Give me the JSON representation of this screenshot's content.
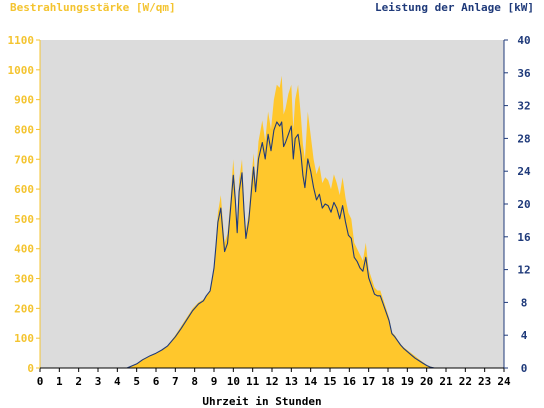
{
  "chart_data": {
    "type": "area",
    "left_axis_title": "Bestrahlungsstärke [W/qm]",
    "right_axis_title": "Leistung der Anlage [kW]",
    "xlabel": "Uhrzeit in Stunden",
    "x_ticks": [
      "0",
      "1",
      "2",
      "3",
      "4",
      "5",
      "6",
      "7",
      "8",
      "9",
      "10",
      "11",
      "12",
      "13",
      "14",
      "15",
      "16",
      "17",
      "18",
      "19",
      "20",
      "21",
      "22",
      "23",
      "24"
    ],
    "y_left_ticks": [
      "0",
      "100",
      "200",
      "300",
      "400",
      "500",
      "600",
      "700",
      "800",
      "900",
      "1000",
      "1100"
    ],
    "y_right_ticks": [
      "0",
      "4",
      "8",
      "12",
      "16",
      "20",
      "24",
      "28",
      "32",
      "36",
      "40"
    ],
    "xlim": [
      0,
      24
    ],
    "ylim_left": [
      0,
      1100
    ],
    "ylim_right": [
      0,
      40
    ],
    "grid": false,
    "colors": {
      "irradiance": "#ffc72c",
      "power": "#1f3a7a",
      "left_axis_text": "#f4c430",
      "right_axis_text": "#1f3a7a",
      "plot_background": "#dcdcdc"
    },
    "series": [
      {
        "name": "Bestrahlungsstärke [W/qm]",
        "axis": "left",
        "style": "filled-area",
        "x": [
          0,
          4.5,
          5,
          5.3,
          5.7,
          6,
          6.3,
          6.6,
          7,
          7.3,
          7.6,
          7.9,
          8.2,
          8.45,
          8.6,
          8.8,
          8.9,
          9.0,
          9.1,
          9.2,
          9.35,
          9.45,
          9.55,
          9.7,
          9.85,
          10.0,
          10.1,
          10.2,
          10.3,
          10.45,
          10.55,
          10.65,
          10.8,
          10.95,
          11.05,
          11.15,
          11.3,
          11.5,
          11.65,
          11.8,
          11.95,
          12.1,
          12.25,
          12.4,
          12.5,
          12.6,
          12.7,
          12.85,
          13.0,
          13.1,
          13.2,
          13.35,
          13.5,
          13.6,
          13.7,
          13.85,
          14.0,
          14.15,
          14.3,
          14.45,
          14.6,
          14.75,
          14.9,
          15.05,
          15.2,
          15.35,
          15.5,
          15.65,
          15.8,
          15.95,
          16.1,
          16.25,
          16.4,
          16.55,
          16.7,
          16.85,
          17.0,
          17.15,
          17.3,
          17.45,
          17.6,
          17.75,
          17.9,
          18.05,
          18.2,
          18.35,
          18.5,
          18.65,
          18.8,
          19.0,
          19.2,
          19.4,
          19.6,
          19.8,
          20.0,
          20.2,
          20.4,
          20.6,
          24
        ],
        "values": [
          0,
          0,
          15,
          30,
          40,
          50,
          60,
          75,
          110,
          140,
          170,
          200,
          220,
          230,
          240,
          260,
          300,
          340,
          420,
          520,
          580,
          500,
          420,
          450,
          560,
          700,
          600,
          480,
          630,
          700,
          560,
          460,
          520,
          650,
          720,
          620,
          760,
          830,
          760,
          860,
          800,
          900,
          950,
          940,
          980,
          850,
          870,
          920,
          950,
          800,
          900,
          950,
          840,
          750,
          700,
          860,
          780,
          700,
          650,
          680,
          620,
          640,
          630,
          600,
          650,
          620,
          580,
          640,
          570,
          520,
          500,
          420,
          400,
          380,
          360,
          420,
          330,
          300,
          270,
          260,
          260,
          230,
          200,
          170,
          120,
          110,
          95,
          80,
          70,
          60,
          50,
          40,
          30,
          20,
          10,
          5,
          0,
          0,
          0
        ],
        "y_unit": "W/qm"
      },
      {
        "name": "Leistung der Anlage [kW]",
        "axis": "right",
        "style": "line",
        "x": [
          0,
          4.5,
          5,
          5.3,
          5.7,
          6,
          6.3,
          6.6,
          7,
          7.3,
          7.6,
          7.9,
          8.2,
          8.45,
          8.6,
          8.8,
          8.9,
          9.0,
          9.1,
          9.2,
          9.35,
          9.45,
          9.55,
          9.7,
          9.85,
          10.0,
          10.1,
          10.2,
          10.3,
          10.45,
          10.55,
          10.65,
          10.8,
          10.95,
          11.05,
          11.15,
          11.3,
          11.5,
          11.65,
          11.8,
          11.95,
          12.1,
          12.25,
          12.4,
          12.5,
          12.6,
          12.7,
          12.85,
          13.0,
          13.1,
          13.2,
          13.35,
          13.5,
          13.6,
          13.7,
          13.85,
          14.0,
          14.15,
          14.3,
          14.45,
          14.6,
          14.75,
          14.9,
          15.05,
          15.2,
          15.35,
          15.5,
          15.65,
          15.8,
          15.95,
          16.1,
          16.25,
          16.4,
          16.55,
          16.7,
          16.85,
          17.0,
          17.15,
          17.3,
          17.45,
          17.6,
          17.75,
          17.9,
          18.05,
          18.2,
          18.35,
          18.5,
          18.65,
          18.8,
          19.0,
          19.2,
          19.4,
          19.6,
          19.8,
          20.0,
          20.2,
          20.4,
          20.6,
          24
        ],
        "values": [
          0,
          0,
          0.5,
          1.0,
          1.5,
          1.8,
          2.2,
          2.7,
          3.8,
          4.8,
          5.9,
          7.0,
          7.8,
          8.2,
          8.8,
          9.4,
          10.8,
          12.2,
          14.8,
          17.8,
          19.5,
          16.8,
          14.2,
          15.2,
          19.2,
          23.5,
          20.5,
          16.5,
          21.5,
          23.8,
          19.2,
          15.8,
          18.0,
          22.0,
          24.5,
          21.5,
          25.5,
          27.5,
          25.5,
          28.5,
          26.5,
          29.0,
          30.0,
          29.5,
          30.0,
          27.0,
          27.5,
          28.5,
          29.5,
          25.5,
          28.0,
          28.5,
          26.0,
          23.5,
          22.0,
          25.5,
          24.0,
          22.0,
          20.5,
          21.2,
          19.5,
          20.0,
          19.8,
          19.0,
          20.2,
          19.5,
          18.2,
          19.8,
          17.8,
          16.2,
          15.8,
          13.5,
          13.0,
          12.2,
          11.8,
          13.5,
          11.0,
          10.0,
          9.0,
          8.8,
          8.8,
          7.8,
          6.8,
          5.8,
          4.2,
          3.8,
          3.3,
          2.8,
          2.4,
          2.0,
          1.6,
          1.2,
          0.9,
          0.6,
          0.3,
          0.1,
          0,
          0,
          0
        ],
        "y_unit": "kW"
      }
    ]
  }
}
